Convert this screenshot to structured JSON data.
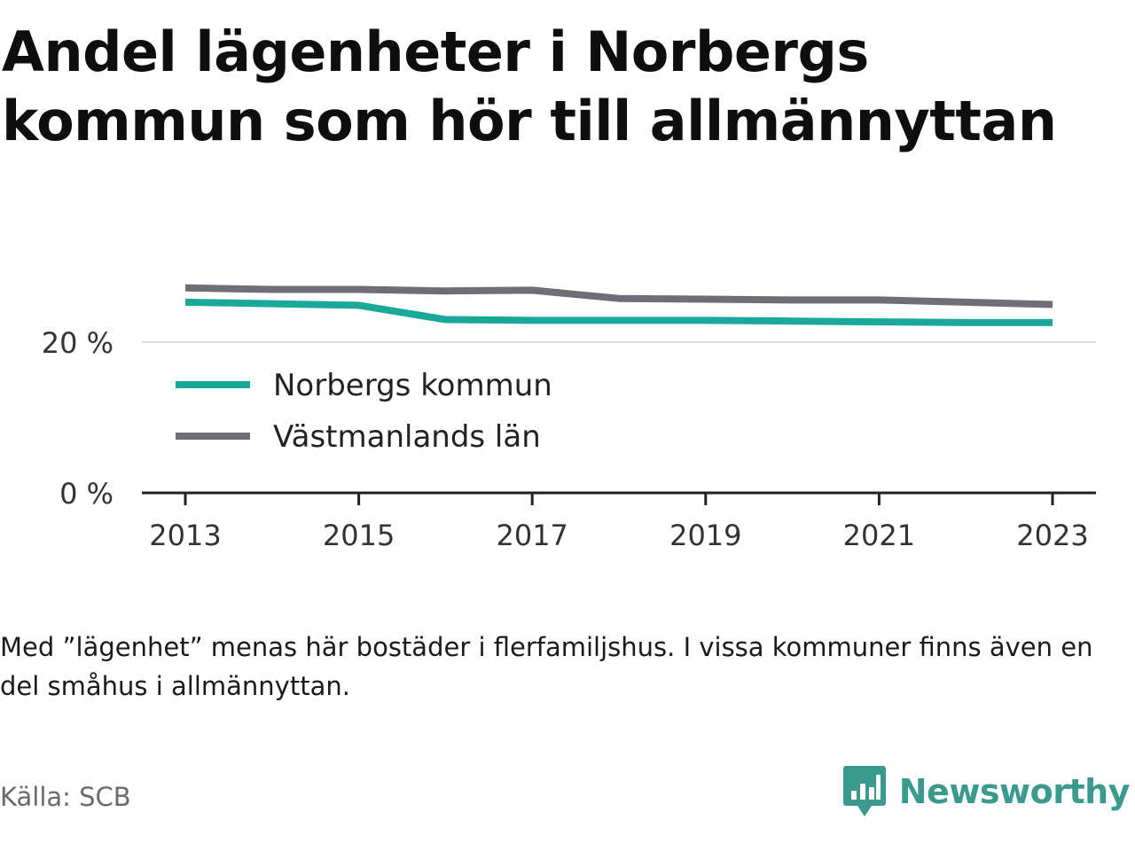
{
  "title_lines": [
    "Andel lägenheter i Norbergs",
    "kommun som hör till allmännyttan"
  ],
  "note": "Med ”lägenhet” menas här bostäder i flerfamiljshus. I vissa kommuner finns även en del småhus i allmännyttan.",
  "source": "Källa: SCB",
  "brand": {
    "name": "Newsworthy",
    "color": "#3a9a8e",
    "icon": "bar-chart-speech-bubble-icon"
  },
  "chart_data": {
    "type": "line",
    "x": [
      2013,
      2014,
      2015,
      2016,
      2017,
      2018,
      2019,
      2020,
      2021,
      2022,
      2023
    ],
    "x_ticks": [
      "2013",
      "2015",
      "2017",
      "2019",
      "2021",
      "2023"
    ],
    "y_ticks": [
      0,
      20
    ],
    "y_tick_labels": [
      "0 %",
      "20 %"
    ],
    "ylim": [
      0,
      30
    ],
    "grid": "horizontal",
    "legend_position": "inside-left",
    "series": [
      {
        "name": "Norbergs kommun",
        "color": "#1aa89a",
        "values": [
          25.3,
          25.1,
          24.9,
          23.0,
          22.9,
          22.9,
          22.9,
          22.8,
          22.7,
          22.6,
          22.6
        ]
      },
      {
        "name": "Västmanlands län",
        "color": "#6f6e76",
        "values": [
          27.2,
          27.0,
          27.0,
          26.8,
          26.9,
          25.8,
          25.7,
          25.6,
          25.6,
          25.3,
          25.0
        ]
      }
    ]
  }
}
